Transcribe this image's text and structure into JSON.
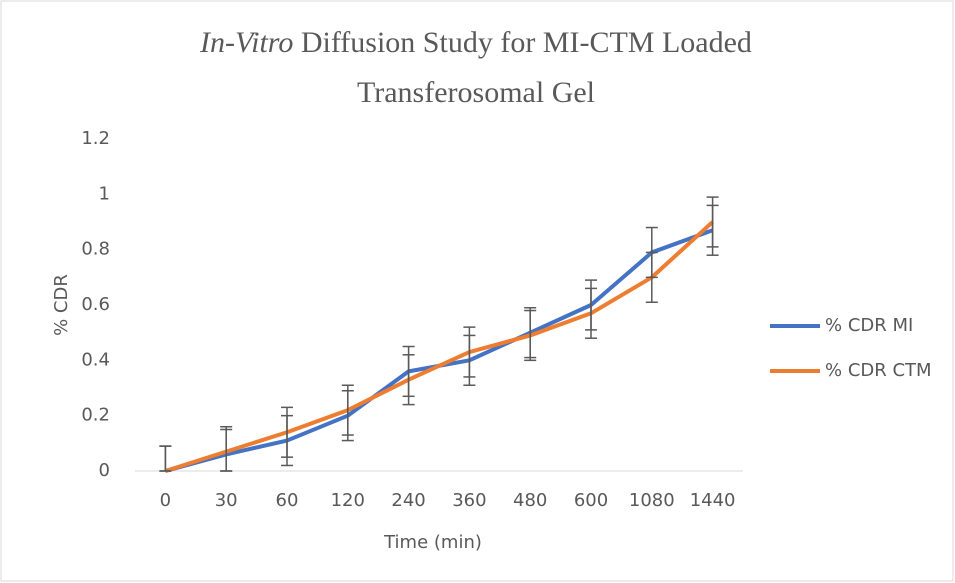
{
  "chart_data": {
    "type": "line",
    "title": {
      "italic": "In-Vitro",
      "rest": "Diffusion Study for MI-CTM Loaded",
      "line2": "Transferosomal Gel"
    },
    "xlabel": "Time (min)",
    "ylabel": "% CDR",
    "categories": [
      "0",
      "30",
      "60",
      "120",
      "240",
      "360",
      "480",
      "600",
      "1080",
      "1440"
    ],
    "series": [
      {
        "name": "% CDR MI",
        "color": "#4472c4",
        "values": [
          0,
          0.06,
          0.11,
          0.2,
          0.36,
          0.4,
          0.5,
          0.6,
          0.79,
          0.87
        ],
        "errors": [
          0.09,
          0.09,
          0.09,
          0.09,
          0.09,
          0.09,
          0.09,
          0.09,
          0.09,
          0.09
        ]
      },
      {
        "name": "% CDR CTM",
        "color": "#ed7d31",
        "values": [
          0,
          0.07,
          0.14,
          0.22,
          0.33,
          0.43,
          0.49,
          0.57,
          0.7,
          0.9
        ],
        "errors": [
          0.09,
          0.09,
          0.09,
          0.09,
          0.09,
          0.09,
          0.09,
          0.09,
          0.09,
          0.09
        ]
      }
    ],
    "ylim": [
      0,
      1.2
    ],
    "yticks": [
      0,
      0.2,
      0.4,
      0.6,
      0.8,
      1,
      1.2
    ],
    "grid": false,
    "legend": "right"
  }
}
